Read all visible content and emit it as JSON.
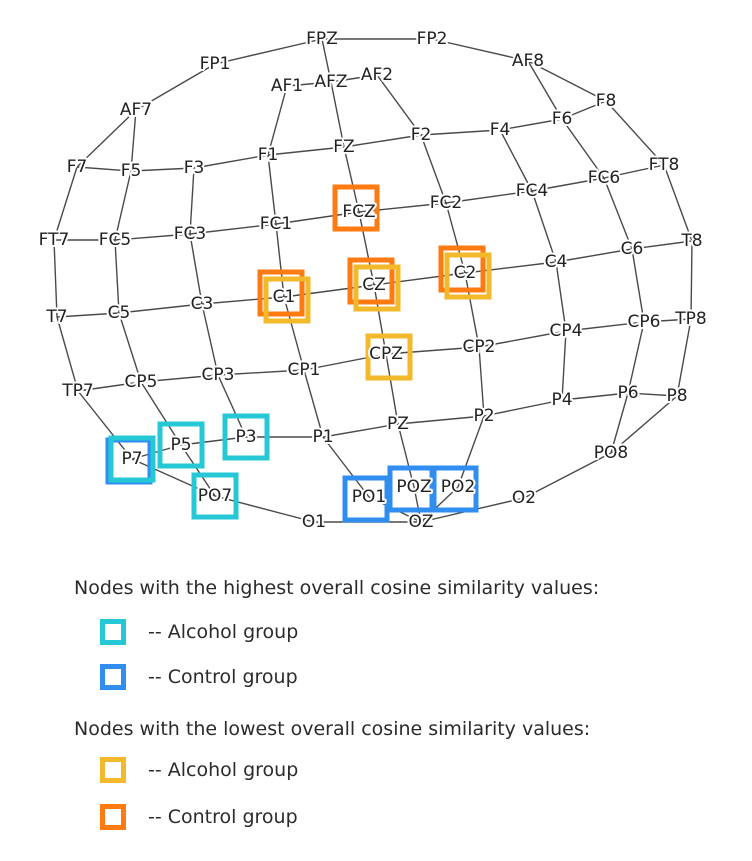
{
  "colors": {
    "alcohol_high": "#25c8d4",
    "control_high": "#2f8ef0",
    "alcohol_low": "#f2b92b",
    "control_low": "#ff7a10",
    "edge": "#4a4a4a"
  },
  "electrodes": [
    "FPZ",
    "FP1",
    "FP2",
    "AF7",
    "AF1",
    "AFZ",
    "AF2",
    "AF8",
    "F7",
    "F5",
    "F3",
    "F1",
    "FZ",
    "F2",
    "F4",
    "F6",
    "F8",
    "FT7",
    "FC5",
    "FC3",
    "FC1",
    "FCZ",
    "FC2",
    "FC4",
    "FC6",
    "FT8",
    "T7",
    "C5",
    "C3",
    "C1",
    "CZ",
    "C2",
    "C4",
    "C6",
    "T8",
    "TP7",
    "CP5",
    "CP3",
    "CP1",
    "CPZ",
    "CP2",
    "CP4",
    "CP6",
    "TP8",
    "P7",
    "P5",
    "P3",
    "P1",
    "PZ",
    "P2",
    "P4",
    "P6",
    "P8",
    "PO7",
    "PO1",
    "POZ",
    "PO2",
    "PO8",
    "O1",
    "OZ",
    "O2"
  ],
  "highlights": {
    "alcohol_high": [
      "P5",
      "P3",
      "PO7",
      "P7"
    ],
    "control_high": [
      "P7",
      "PO1",
      "POZ",
      "PO2"
    ],
    "alcohol_low": [
      "C1",
      "CZ",
      "C2",
      "CPZ"
    ],
    "control_low": [
      "FCZ",
      "C1",
      "CZ",
      "C2"
    ]
  },
  "legend": {
    "high_heading": "Nodes with the highest overall cosine similarity values:",
    "low_heading": "Nodes with the lowest overall cosine similarity values:",
    "alcohol_label": "-- Alcohol group",
    "control_label": "-- Control group"
  }
}
